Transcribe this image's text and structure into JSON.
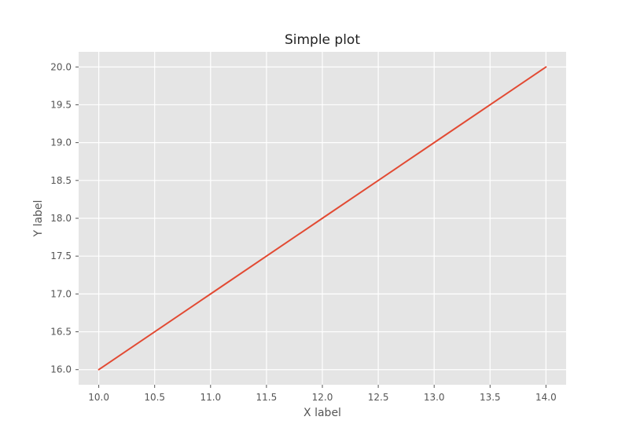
{
  "chart_data": {
    "type": "line",
    "title": "Simple plot",
    "xlabel": "X label",
    "ylabel": "Y label",
    "xlim": [
      9.82,
      14.18
    ],
    "ylim": [
      15.8,
      20.2
    ],
    "xticks": [
      "10.0",
      "10.5",
      "11.0",
      "11.5",
      "12.0",
      "12.5",
      "13.0",
      "13.5",
      "14.0"
    ],
    "yticks": [
      "16.0",
      "16.5",
      "17.0",
      "17.5",
      "18.0",
      "18.5",
      "19.0",
      "19.5",
      "20.0"
    ],
    "grid": true,
    "style": "ggplot",
    "background_color": "#e5e5e5",
    "grid_color": "#ffffff",
    "series": [
      {
        "color": "#e24a33",
        "x": [
          10,
          11,
          12,
          13,
          14
        ],
        "y": [
          16,
          17,
          18,
          19,
          20
        ]
      }
    ]
  }
}
